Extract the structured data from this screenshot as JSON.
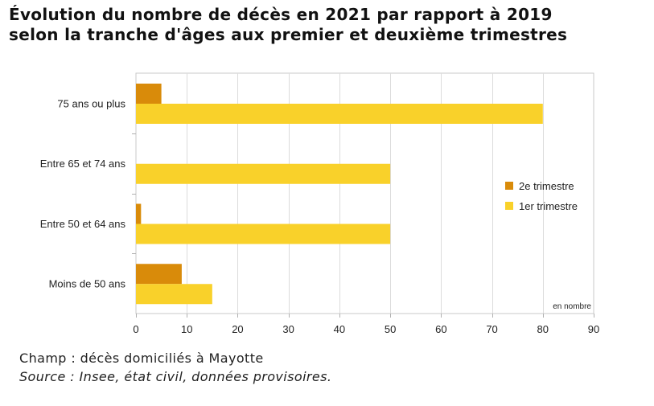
{
  "title_lines": [
    "Évolution du nombre de décès en 2021 par rapport à 2019",
    "selon la tranche d'âges aux premier et deuxième trimestres"
  ],
  "footer": {
    "champ": "Champ : décès domiciliés à Mayotte",
    "source": "Source : Insee, état civil, données provisoires."
  },
  "chart_data": {
    "type": "bar",
    "orientation": "horizontal",
    "categories": [
      "75 ans ou plus",
      "Entre 65 et 74 ans",
      "Entre 50 et 64 ans",
      "Moins de 50 ans"
    ],
    "series": [
      {
        "name": "2e trimestre",
        "values": [
          5,
          0,
          1,
          9
        ],
        "color": "#D98B0A"
      },
      {
        "name": "1er trimestre",
        "values": [
          80,
          50,
          50,
          15
        ],
        "color": "#F9D12A"
      }
    ],
    "xlim": [
      0,
      90
    ],
    "xticks": [
      0,
      10,
      20,
      30,
      40,
      50,
      60,
      70,
      80,
      90
    ],
    "unit_label": "en nombre",
    "grid": true,
    "legend_position": "right"
  }
}
